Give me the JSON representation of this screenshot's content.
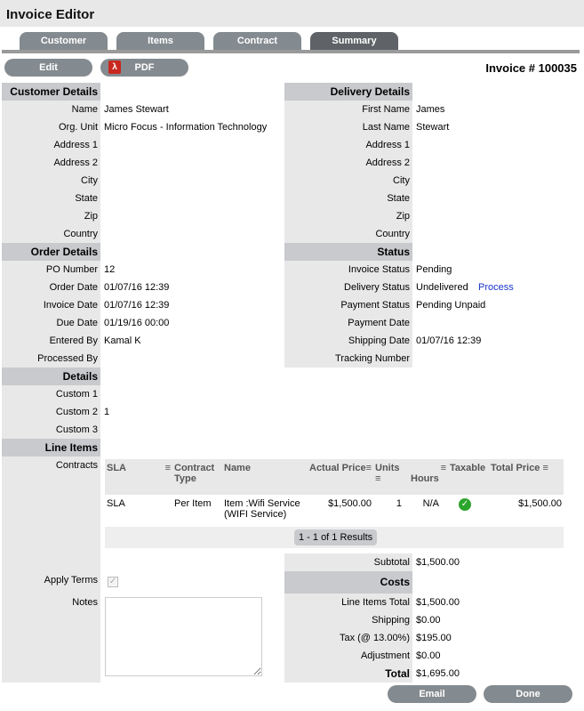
{
  "title": "Invoice Editor",
  "tabs": [
    {
      "label": "Customer"
    },
    {
      "label": "Items"
    },
    {
      "label": "Contract"
    },
    {
      "label": "Summary",
      "active": true
    }
  ],
  "toolbar": {
    "edit": "Edit",
    "pdf": "PDF",
    "invoice_number": "Invoice # 100035"
  },
  "left_sections": [
    {
      "header": "Customer Details",
      "rows": [
        [
          "Name",
          "James Stewart"
        ],
        [
          "Org. Unit",
          "Micro Focus - Information Technology"
        ],
        [
          "Address 1",
          ""
        ],
        [
          "Address 2",
          ""
        ],
        [
          "City",
          ""
        ],
        [
          "State",
          ""
        ],
        [
          "Zip",
          ""
        ],
        [
          "Country",
          ""
        ]
      ]
    },
    {
      "header": "Order Details",
      "rows": [
        [
          "PO Number",
          "12"
        ],
        [
          "Order Date",
          "01/07/16 12:39"
        ],
        [
          "Invoice Date",
          "01/07/16 12:39"
        ],
        [
          "Due Date",
          "01/19/16 00:00"
        ],
        [
          "Entered By",
          "Kamal K"
        ],
        [
          "Processed By",
          ""
        ]
      ]
    },
    {
      "header": "Details",
      "rows": [
        [
          "Custom 1",
          ""
        ],
        [
          "Custom 2",
          "1"
        ],
        [
          "Custom 3",
          ""
        ]
      ]
    },
    {
      "header": "Line Items",
      "rows": [
        [
          "Contracts",
          ""
        ]
      ]
    }
  ],
  "right_sections": [
    {
      "header": "Delivery Details",
      "rows": [
        [
          "First Name",
          "James"
        ],
        [
          "Last Name",
          "Stewart"
        ],
        [
          "Address 1",
          ""
        ],
        [
          "Address 2",
          ""
        ],
        [
          "City",
          ""
        ],
        [
          "State",
          ""
        ],
        [
          "Zip",
          ""
        ],
        [
          "Country",
          ""
        ]
      ]
    },
    {
      "header": "Status",
      "rows": [
        [
          "Invoice Status",
          "Pending"
        ],
        [
          "Delivery Status",
          "Undelivered"
        ],
        [
          "Payment Status",
          "Pending Unpaid"
        ],
        [
          "Payment Date",
          ""
        ],
        [
          "Shipping Date",
          "01/07/16 12:39"
        ],
        [
          "Tracking Number",
          ""
        ]
      ]
    }
  ],
  "process_link": "Process",
  "line_items": {
    "columns": [
      "SLA",
      "Contract Type",
      "Name",
      "Actual Price",
      "Units",
      "Hours",
      "Taxable",
      "Total Price"
    ],
    "rows": [
      {
        "sla": "SLA",
        "type": "Per Item",
        "name": "Item :Wifi Service (WIFI Service)",
        "price": "$1,500.00",
        "units": "1",
        "hours": "N/A",
        "taxable": true,
        "total": "$1,500.00"
      }
    ],
    "pager": "1 - 1 of 1 Results"
  },
  "apply_terms": {
    "label": "Apply Terms",
    "checked": true
  },
  "notes": {
    "label": "Notes",
    "value": ""
  },
  "subtotal": {
    "label": "Subtotal",
    "value": "$1,500.00"
  },
  "costs": {
    "header": "Costs",
    "rows": [
      [
        "Line Items Total",
        "$1,500.00"
      ],
      [
        "Shipping",
        "$0.00"
      ],
      [
        "Tax (@ 13.00%)",
        "$195.00"
      ],
      [
        "Adjustment",
        "$0.00"
      ],
      [
        "Total",
        "$1,695.00"
      ]
    ]
  },
  "footer": {
    "email": "Email",
    "done": "Done"
  },
  "colors": {
    "tab": "#848b90",
    "tab_active": "#5f6367",
    "header": "#c8cacd",
    "label_bg": "#e8e8e8",
    "link": "#1a35c8",
    "taxable_ok": "#2ca52c"
  }
}
